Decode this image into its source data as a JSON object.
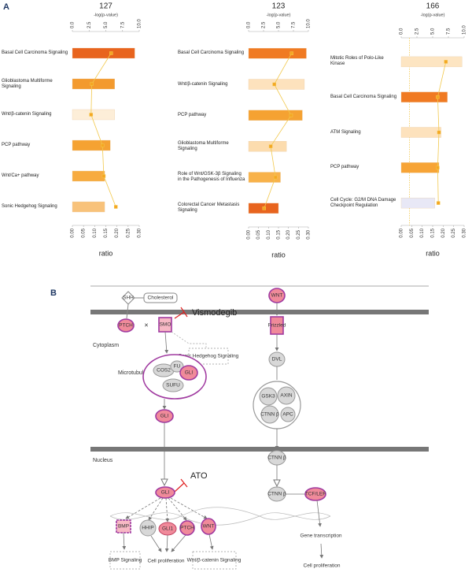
{
  "panel_a_label": "A",
  "chart_data": [
    {
      "type": "hbar",
      "title": "127",
      "xlabel": "ratio",
      "x2label": "-log(p-value)",
      "categories": [
        "Basal Cell Carcinoma Signaling",
        "Glioblastoma Multiforme Signaling",
        "Wnt/β-catenin Signaling",
        "PCP pathway",
        "Wnt/Ca+ pathway",
        "Sonic Hedgehog Signaling"
      ],
      "series": [
        {
          "values": [
            0.28,
            0.19,
            0.19,
            0.17,
            0.145,
            0.145
          ],
          "colors": [
            "#e8641e",
            "#f39a2e",
            "#fdeed8",
            "#f5a232",
            "#f7ab40",
            "#f8c27a"
          ]
        },
        {
          "values": [
            5.8,
            2.9,
            2.8,
            4.5,
            4.7,
            6.5
          ],
          "axis": "x2",
          "color": "#f2c84b"
        }
      ],
      "xlim": [
        0,
        0.3
      ],
      "xticks": [
        {
          "value": 0,
          "label": "0.00"
        },
        0.05,
        {
          "value": 0.1,
          "label": "0.10"
        },
        0.15,
        {
          "value": 0.2,
          "label": "0.20"
        },
        0.25,
        {
          "value": 0.3,
          "label": "0.30"
        }
      ],
      "x2lim": [
        0,
        10
      ],
      "x2ticks": [
        {
          "value": 0,
          "label": "0.0"
        },
        2.5,
        {
          "value": 5,
          "label": "5.0"
        },
        7.5,
        {
          "value": 10,
          "label": "10.0"
        }
      ]
    },
    {
      "type": "hbar",
      "title": "123",
      "xlabel": "ratio",
      "x2label": "-log(p-value)",
      "categories": [
        "Basal Cell Carcinoma Signaling",
        "Wnt/β-catenin Signaling",
        "PCP pathway",
        "Glioblastoma Multiforme Signaling",
        "Role of Wnt/GSK-3β Signaling in the Pathogenesis of Influenza",
        "Colorectal Cancer Metastasis Signaling"
      ],
      "series": [
        {
          "values": [
            0.29,
            0.28,
            0.27,
            0.19,
            0.16,
            0.15
          ],
          "colors": [
            "#f07a22",
            "#fde2bd",
            "#f5a232",
            "#fcdcae",
            "#f8b24a",
            "#e8641e"
          ]
        },
        {
          "values": [
            7.2,
            4.3,
            7.1,
            3.7,
            4.5,
            2.6
          ],
          "axis": "x2",
          "color": "#f2c84b"
        }
      ],
      "xlim": [
        0,
        0.3
      ],
      "xticks": [
        {
          "value": 0,
          "label": "0.00"
        },
        0.05,
        {
          "value": 0.1,
          "label": "0.10"
        },
        0.15,
        {
          "value": 0.2,
          "label": "0.20"
        },
        0.25,
        {
          "value": 0.3,
          "label": "0.30"
        }
      ],
      "x2lim": [
        0,
        10
      ],
      "x2ticks": [
        {
          "value": 0,
          "label": "0.0"
        },
        2.5,
        {
          "value": 5,
          "label": "5.0"
        },
        7.5,
        {
          "value": 10,
          "label": "10.0"
        }
      ]
    },
    {
      "type": "hbar",
      "title": "166",
      "xlabel": "ratio",
      "x2label": "-log(p-value)",
      "categories": [
        "Mitotic Roles of Polo-Like Kinase",
        "Basal Cell Carcinoma Signaling",
        "ATM Signaling",
        "PCP pathway",
        "Cell Cycle: G2/M DNA Damage Checkpoint Regulation"
      ],
      "series": [
        {
          "values": [
            0.29,
            0.22,
            0.19,
            0.18,
            0.16
          ],
          "colors": [
            "#fde5c2",
            "#f07a22",
            "#fde2bd",
            "#f7a436",
            "#e8e8f6"
          ]
        },
        {
          "values": [
            7.1,
            5.8,
            6.0,
            5.8,
            5.9
          ],
          "axis": "x2",
          "color": "#f2c84b"
        }
      ],
      "threshold": 1.3,
      "xlim": [
        0,
        0.3
      ],
      "xticks": [
        {
          "value": 0,
          "label": "0.00"
        },
        0.05,
        {
          "value": 0.1,
          "label": "0.10"
        },
        0.15,
        {
          "value": 0.2,
          "label": "0.20"
        },
        0.25,
        {
          "value": 0.3,
          "label": "0.30"
        }
      ],
      "x2lim": [
        0,
        10
      ],
      "x2ticks": [
        {
          "value": 0,
          "label": "0.0"
        },
        2.5,
        {
          "value": 5,
          "label": "5.0"
        },
        7.5,
        {
          "value": 10,
          "label": "10.0"
        }
      ]
    }
  ],
  "panel_b": {
    "label": "B",
    "shh": "SHH",
    "cholesterol": "Cholesterol",
    "ptch": "PTCH",
    "smo": "SMO",
    "vismodegib": "Vismodegib",
    "cytoplasm": "Cytoplasm",
    "shh_signaling": "Sonic Hedgehog Signaling",
    "microtubule": "Microtubule",
    "cos2": "COS2",
    "fu": "FU",
    "gli_complex": "GLI",
    "sufu": "SUFU",
    "gli_cyto": "GLI",
    "nucleus": "Nucleus",
    "ato": "ATO",
    "gli_nuc": "GLI",
    "bmp": "BMP",
    "hhip": "HHIP",
    "gli1": "GLI1",
    "ptch_target": "PTCH",
    "wnt_target": "WNT",
    "bmp_signaling": "BMP Signaling",
    "cell_prolif_left": "Cell proliferation",
    "wnt_signaling": "Wnt/β-catenin Signaling",
    "wnt": "WNT",
    "frizzled": "Frizzled",
    "dvl": "DVL",
    "gsk3": "GSK3",
    "axin": "AXIN",
    "ctnn_complex": "CTNN β",
    "apc": "APC",
    "ctnn_cyto": "CTNN β",
    "ctnn_nuc": "CTNN β",
    "tcf_lef": "TCF/LEF",
    "gene_transcription": "Gene transcription",
    "cell_prolif_right": "Cell proliferation"
  }
}
